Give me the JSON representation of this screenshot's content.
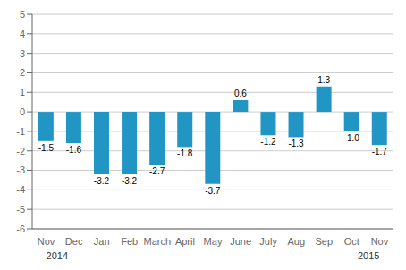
{
  "chart_data": {
    "type": "bar",
    "categories": [
      "Nov",
      "Dec",
      "Jan",
      "Feb",
      "March",
      "April",
      "May",
      "June",
      "July",
      "Aug",
      "Sep",
      "Oct",
      "Nov"
    ],
    "values": [
      -1.5,
      -1.6,
      -3.2,
      -3.2,
      -2.7,
      -1.8,
      -3.7,
      0.6,
      -1.2,
      -1.3,
      1.3,
      -1.0,
      -1.7
    ],
    "value_labels": [
      "-1.5",
      "-1.6",
      "-3.2",
      "-3.2",
      "-2.7",
      "-1.8",
      "-3.7",
      "0.6",
      "-1.2",
      "-1.3",
      "1.3",
      "-1.0",
      "-1.7"
    ],
    "color": "#2196c4",
    "ylim": [
      -6,
      5
    ],
    "yticks": [
      -6,
      -5,
      -4,
      -3,
      -2,
      -1,
      0,
      1,
      2,
      3,
      4,
      5
    ],
    "grid": true,
    "data_labels": true,
    "annotations": [
      "2014",
      "2015"
    ]
  }
}
